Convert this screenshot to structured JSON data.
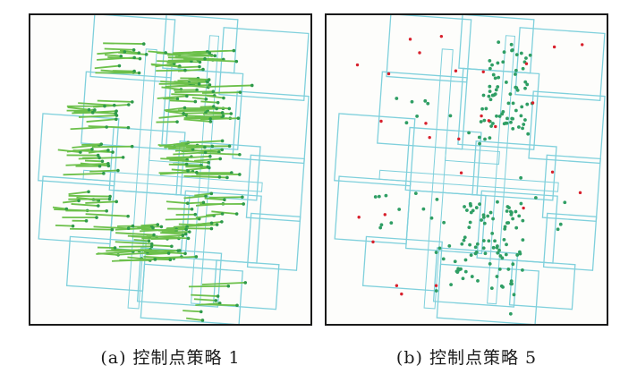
{
  "captions": {
    "a": "(a) 控制点策略 1",
    "b": "(b) 控制点策略 5"
  },
  "colors": {
    "tile_outline": "#7fd0dc",
    "vector_line": "#6cc04a",
    "vector_head": "#2e9a4a",
    "point_green": "#2f9e64",
    "point_red": "#d8202c",
    "frame": "#1a1a1a"
  },
  "legend": []
}
